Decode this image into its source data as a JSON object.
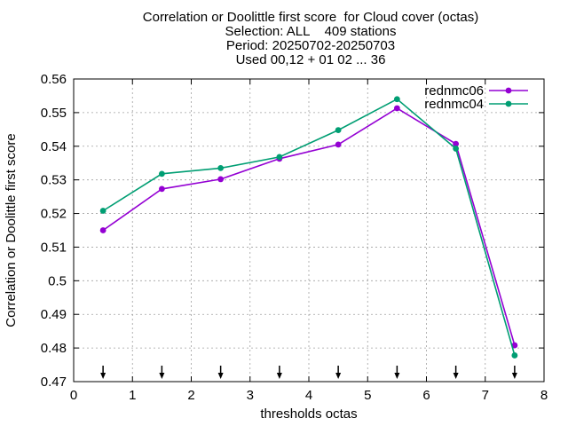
{
  "chart_data": {
    "type": "line",
    "title_lines": [
      "Correlation or Doolittle first score  for Cloud cover (octas)",
      "Selection: ALL    409 stations",
      "Period: 20250702-20250703",
      "Used 00,12 + 01 02 ... 36"
    ],
    "xlabel": "thresholds octas",
    "ylabel": "Correlation or Doolittle first score",
    "xlim": [
      0,
      8
    ],
    "ylim": [
      0.47,
      0.56
    ],
    "x_ticks": [
      0,
      1,
      2,
      3,
      4,
      5,
      6,
      7,
      8
    ],
    "y_ticks": [
      0.47,
      0.48,
      0.49,
      0.5,
      0.51,
      0.52,
      0.53,
      0.54,
      0.55,
      0.56
    ],
    "grid": true,
    "legend_position": "top-right",
    "x": [
      0.5,
      1.5,
      2.5,
      3.5,
      4.5,
      5.5,
      6.5,
      7.5
    ],
    "series": [
      {
        "name": "rednmc06",
        "color": "#9400d3",
        "values": [
          0.515,
          0.5273,
          0.5302,
          0.5363,
          0.5405,
          0.5513,
          0.5407,
          0.4808
        ]
      },
      {
        "name": "rednmc04",
        "color": "#009e73",
        "values": [
          0.5208,
          0.5318,
          0.5335,
          0.5368,
          0.5448,
          0.554,
          0.5393,
          0.4778
        ]
      }
    ],
    "arrow_markers_x": [
      0.5,
      1.5,
      2.5,
      3.5,
      4.5,
      5.5,
      6.5,
      7.5
    ]
  }
}
